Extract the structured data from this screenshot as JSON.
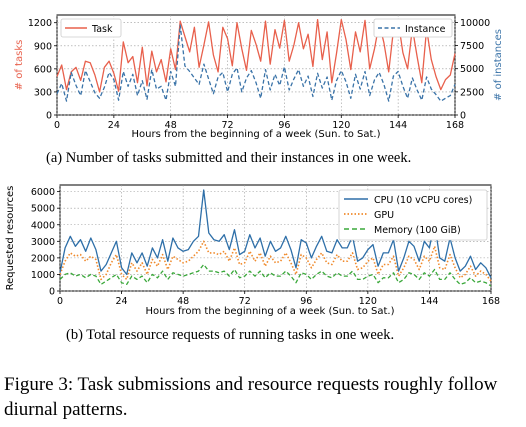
{
  "chart_data": [
    {
      "type": "line",
      "xlabel": "Hours from the beginning of a week (Sun. to Sat.)",
      "x_ticks": [
        0,
        24,
        48,
        72,
        96,
        120,
        144,
        168
      ],
      "xlim": [
        0,
        168
      ],
      "ylabel_left": "# of tasks",
      "ylabel_right": "# of instances",
      "ylim_left": [
        0,
        1300
      ],
      "ylim_right": [
        0,
        10800
      ],
      "y_ticks_left": [
        0,
        300,
        600,
        900,
        1200
      ],
      "y_ticks_right": [
        0,
        2500,
        5000,
        7500,
        10000
      ],
      "grid": true,
      "legend_left": "top-left",
      "legend_right": "top-right",
      "series": [
        {
          "name": "Task",
          "axis": "left",
          "color": "#e8604c",
          "style": "solid",
          "x": [
            0,
            2,
            4,
            6,
            8,
            10,
            12,
            14,
            16,
            18,
            20,
            22,
            24,
            26,
            28,
            30,
            32,
            34,
            36,
            38,
            40,
            42,
            44,
            46,
            48,
            50,
            52,
            54,
            56,
            58,
            60,
            62,
            64,
            66,
            68,
            70,
            72,
            74,
            76,
            78,
            80,
            82,
            84,
            86,
            88,
            90,
            92,
            94,
            96,
            98,
            100,
            102,
            104,
            106,
            108,
            110,
            112,
            114,
            116,
            118,
            120,
            122,
            124,
            126,
            128,
            130,
            132,
            134,
            136,
            138,
            140,
            142,
            144,
            146,
            148,
            150,
            152,
            154,
            156,
            158,
            160,
            162,
            164,
            166,
            168
          ],
          "values": [
            500,
            650,
            330,
            560,
            620,
            450,
            700,
            680,
            520,
            300,
            620,
            700,
            540,
            310,
            950,
            680,
            760,
            420,
            880,
            380,
            830,
            560,
            720,
            430,
            860,
            590,
            1220,
            1020,
            820,
            1140,
            620,
            910,
            1210,
            780,
            560,
            1140,
            990,
            640,
            1200,
            860,
            580,
            1100,
            920,
            700,
            1220,
            660,
            1110,
            870,
            1230,
            700,
            910,
            1200,
            860,
            1050,
            630,
            1240,
            720,
            1080,
            420,
            800,
            1240,
            980,
            590,
            1080,
            820,
            1230,
            600,
            860,
            1190,
            940,
            560,
            1100,
            1230,
            810,
            600,
            1130,
            760,
            420,
            1120,
            720,
            500,
            330,
            460,
            520,
            800
          ]
        },
        {
          "name": "Instance",
          "axis": "right",
          "color": "#3a73a8",
          "style": "dashed",
          "x": [
            0,
            2,
            4,
            6,
            8,
            10,
            12,
            14,
            16,
            18,
            20,
            22,
            24,
            26,
            28,
            30,
            32,
            34,
            36,
            38,
            40,
            42,
            44,
            46,
            48,
            50,
            52,
            54,
            56,
            58,
            60,
            62,
            64,
            66,
            68,
            70,
            72,
            74,
            76,
            78,
            80,
            82,
            84,
            86,
            88,
            90,
            92,
            94,
            96,
            98,
            100,
            102,
            104,
            106,
            108,
            110,
            112,
            114,
            116,
            118,
            120,
            122,
            124,
            126,
            128,
            130,
            132,
            134,
            136,
            138,
            140,
            142,
            144,
            146,
            148,
            150,
            152,
            154,
            156,
            158,
            160,
            162,
            164,
            166,
            168
          ],
          "values": [
            2300,
            3400,
            1500,
            4600,
            3200,
            2100,
            4800,
            3600,
            2400,
            1800,
            3000,
            4600,
            3800,
            1600,
            4700,
            3100,
            4400,
            2100,
            3700,
            1700,
            4900,
            2800,
            3100,
            1600,
            4700,
            3100,
            9700,
            5300,
            4700,
            4000,
            3300,
            5500,
            3900,
            2300,
            4100,
            4600,
            2500,
            4400,
            5100,
            2500,
            4000,
            4800,
            3500,
            1800,
            4900,
            2700,
            4400,
            3200,
            5200,
            2700,
            3900,
            4900,
            3100,
            4200,
            2000,
            4500,
            2900,
            4100,
            1600,
            3700,
            4800,
            3600,
            1800,
            4400,
            2800,
            4700,
            2100,
            3800,
            4600,
            3300,
            1500,
            4200,
            4700,
            3100,
            1800,
            4000,
            2700,
            1600,
            4100,
            2800,
            2200,
            1500,
            1800,
            2100,
            3300
          ]
        }
      ]
    },
    {
      "type": "line",
      "xlabel": "Hours from the beginning of a week (Sun. to Sat.)",
      "x_ticks": [
        0,
        24,
        48,
        72,
        96,
        120,
        144,
        168
      ],
      "xlim": [
        0,
        168
      ],
      "ylabel": "Requested resources",
      "ylim": [
        0,
        6400
      ],
      "y_ticks": [
        0,
        1000,
        2000,
        3000,
        4000,
        5000,
        6000
      ],
      "grid": true,
      "legend": "top-right",
      "series": [
        {
          "name": "CPU (10 vCPU cores)",
          "color": "#2e6fa8",
          "style": "solid",
          "x": [
            0,
            2,
            4,
            6,
            8,
            10,
            12,
            14,
            16,
            18,
            20,
            22,
            24,
            26,
            28,
            30,
            32,
            34,
            36,
            38,
            40,
            42,
            44,
            46,
            48,
            50,
            52,
            54,
            56,
            58,
            60,
            62,
            64,
            66,
            68,
            70,
            72,
            74,
            76,
            78,
            80,
            82,
            84,
            86,
            88,
            90,
            92,
            94,
            96,
            98,
            100,
            102,
            104,
            106,
            108,
            110,
            112,
            114,
            116,
            118,
            120,
            122,
            124,
            126,
            128,
            130,
            132,
            134,
            136,
            138,
            140,
            142,
            144,
            146,
            148,
            150,
            152,
            154,
            156,
            158,
            160,
            162,
            164,
            166,
            168
          ],
          "values": [
            1100,
            2600,
            3300,
            2700,
            3100,
            2400,
            3200,
            2500,
            1200,
            1600,
            2300,
            3000,
            1400,
            1000,
            2300,
            1700,
            2300,
            1500,
            2600,
            2000,
            3100,
            1800,
            3200,
            2600,
            2400,
            2500,
            3000,
            3300,
            6100,
            3500,
            3100,
            3000,
            3400,
            2500,
            3700,
            2200,
            2400,
            3400,
            2600,
            3200,
            2100,
            3000,
            2400,
            2600,
            3300,
            2500,
            1400,
            3100,
            2900,
            2000,
            2700,
            3300,
            2400,
            2300,
            3100,
            2600,
            2600,
            3300,
            1800,
            2000,
            2500,
            2800,
            1500,
            2300,
            2300,
            3100,
            1200,
            2000,
            3000,
            2700,
            1800,
            3000,
            2600,
            4100,
            2000,
            1800,
            3200,
            2000,
            1200,
            1500,
            2100,
            1300,
            1700,
            1400,
            800
          ]
        },
        {
          "name": "GPU",
          "color": "#f08a2c",
          "style": "dotted",
          "x": [
            0,
            2,
            4,
            6,
            8,
            10,
            12,
            14,
            16,
            18,
            20,
            22,
            24,
            26,
            28,
            30,
            32,
            34,
            36,
            38,
            40,
            42,
            44,
            46,
            48,
            50,
            52,
            54,
            56,
            58,
            60,
            62,
            64,
            66,
            68,
            70,
            72,
            74,
            76,
            78,
            80,
            82,
            84,
            86,
            88,
            90,
            92,
            94,
            96,
            98,
            100,
            102,
            104,
            106,
            108,
            110,
            112,
            114,
            116,
            118,
            120,
            122,
            124,
            126,
            128,
            130,
            132,
            134,
            136,
            138,
            140,
            142,
            144,
            146,
            148,
            150,
            152,
            154,
            156,
            158,
            160,
            162,
            164,
            166,
            168
          ],
          "values": [
            1000,
            1800,
            2300,
            2100,
            2200,
            1800,
            2100,
            1900,
            700,
            1000,
            1700,
            2200,
            1000,
            700,
            1700,
            1200,
            1700,
            1000,
            1900,
            1500,
            2200,
            1300,
            2100,
            1900,
            1700,
            1800,
            2100,
            2400,
            3000,
            2300,
            2300,
            2200,
            2400,
            1800,
            2600,
            1600,
            1700,
            2400,
            1800,
            2300,
            1500,
            2100,
            1700,
            1800,
            2300,
            1700,
            1000,
            2200,
            2000,
            1400,
            1900,
            2300,
            1700,
            1600,
            2200,
            1800,
            1800,
            2300,
            1300,
            1400,
            1800,
            2000,
            1000,
            1600,
            1600,
            2100,
            900,
            1400,
            2100,
            1900,
            1300,
            2100,
            1800,
            2700,
            1400,
            1300,
            2200,
            1400,
            800,
            1000,
            1500,
            900,
            1200,
            1000,
            600
          ]
        },
        {
          "name": "Memory (100 GiB)",
          "color": "#3aa83a",
          "style": "dashed",
          "x": [
            0,
            2,
            4,
            6,
            8,
            10,
            12,
            14,
            16,
            18,
            20,
            22,
            24,
            26,
            28,
            30,
            32,
            34,
            36,
            38,
            40,
            42,
            44,
            46,
            48,
            50,
            52,
            54,
            56,
            58,
            60,
            62,
            64,
            66,
            68,
            70,
            72,
            74,
            76,
            78,
            80,
            82,
            84,
            86,
            88,
            90,
            92,
            94,
            96,
            98,
            100,
            102,
            104,
            106,
            108,
            110,
            112,
            114,
            116,
            118,
            120,
            122,
            124,
            126,
            128,
            130,
            132,
            134,
            136,
            138,
            140,
            142,
            144,
            146,
            148,
            150,
            152,
            154,
            156,
            158,
            160,
            162,
            164,
            166,
            168
          ],
          "values": [
            700,
            1000,
            1100,
            900,
            1000,
            800,
            1000,
            900,
            400,
            600,
            800,
            1000,
            500,
            400,
            900,
            700,
            900,
            500,
            1000,
            800,
            1200,
            700,
            1100,
            1000,
            900,
            1000,
            1100,
            1200,
            1600,
            1200,
            1200,
            1100,
            1200,
            900,
            1300,
            800,
            900,
            1200,
            900,
            1200,
            800,
            1100,
            900,
            900,
            1200,
            900,
            500,
            1100,
            1000,
            700,
            1000,
            1200,
            900,
            800,
            1100,
            900,
            900,
            1200,
            700,
            700,
            900,
            1000,
            500,
            800,
            800,
            1100,
            500,
            700,
            1100,
            1000,
            700,
            1100,
            900,
            1300,
            700,
            700,
            1100,
            700,
            400,
            500,
            800,
            500,
            600,
            500,
            300
          ]
        }
      ]
    }
  ],
  "captions": {
    "a": "(a) Number of tasks submitted and their instances in one week.",
    "b": "(b) Total resource requests of running tasks in one week.",
    "figure": "Figure 3: Task submissions and resource requests roughly follow diurnal patterns."
  }
}
